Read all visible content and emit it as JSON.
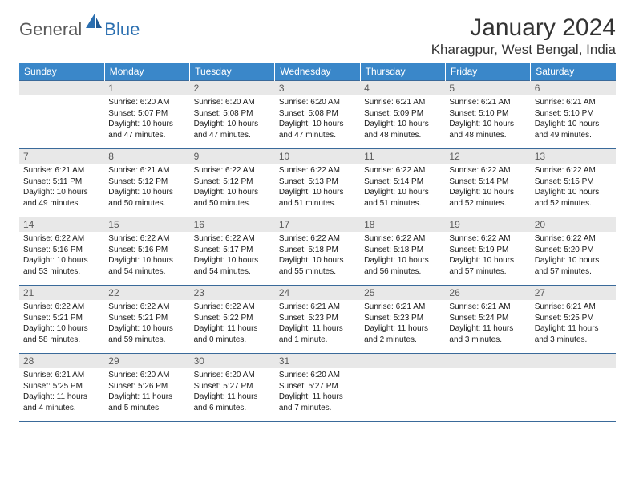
{
  "logo": {
    "text1": "General",
    "text2": "Blue"
  },
  "title": "January 2024",
  "location": "Kharagpur, West Bengal, India",
  "colors": {
    "header_bg": "#3a87c9",
    "header_text": "#ffffff",
    "daynum_bg": "#e8e8e8",
    "daynum_text": "#5a5a5a",
    "border": "#3a6a9a",
    "body_text": "#1a1a1a",
    "logo_gray": "#5a5a5a",
    "logo_blue": "#2b6fb0"
  },
  "dayHeaders": [
    "Sunday",
    "Monday",
    "Tuesday",
    "Wednesday",
    "Thursday",
    "Friday",
    "Saturday"
  ],
  "weeks": [
    [
      {
        "n": "",
        "sr": "",
        "ss": "",
        "dl": ""
      },
      {
        "n": "1",
        "sr": "Sunrise: 6:20 AM",
        "ss": "Sunset: 5:07 PM",
        "dl": "Daylight: 10 hours and 47 minutes."
      },
      {
        "n": "2",
        "sr": "Sunrise: 6:20 AM",
        "ss": "Sunset: 5:08 PM",
        "dl": "Daylight: 10 hours and 47 minutes."
      },
      {
        "n": "3",
        "sr": "Sunrise: 6:20 AM",
        "ss": "Sunset: 5:08 PM",
        "dl": "Daylight: 10 hours and 47 minutes."
      },
      {
        "n": "4",
        "sr": "Sunrise: 6:21 AM",
        "ss": "Sunset: 5:09 PM",
        "dl": "Daylight: 10 hours and 48 minutes."
      },
      {
        "n": "5",
        "sr": "Sunrise: 6:21 AM",
        "ss": "Sunset: 5:10 PM",
        "dl": "Daylight: 10 hours and 48 minutes."
      },
      {
        "n": "6",
        "sr": "Sunrise: 6:21 AM",
        "ss": "Sunset: 5:10 PM",
        "dl": "Daylight: 10 hours and 49 minutes."
      }
    ],
    [
      {
        "n": "7",
        "sr": "Sunrise: 6:21 AM",
        "ss": "Sunset: 5:11 PM",
        "dl": "Daylight: 10 hours and 49 minutes."
      },
      {
        "n": "8",
        "sr": "Sunrise: 6:21 AM",
        "ss": "Sunset: 5:12 PM",
        "dl": "Daylight: 10 hours and 50 minutes."
      },
      {
        "n": "9",
        "sr": "Sunrise: 6:22 AM",
        "ss": "Sunset: 5:12 PM",
        "dl": "Daylight: 10 hours and 50 minutes."
      },
      {
        "n": "10",
        "sr": "Sunrise: 6:22 AM",
        "ss": "Sunset: 5:13 PM",
        "dl": "Daylight: 10 hours and 51 minutes."
      },
      {
        "n": "11",
        "sr": "Sunrise: 6:22 AM",
        "ss": "Sunset: 5:14 PM",
        "dl": "Daylight: 10 hours and 51 minutes."
      },
      {
        "n": "12",
        "sr": "Sunrise: 6:22 AM",
        "ss": "Sunset: 5:14 PM",
        "dl": "Daylight: 10 hours and 52 minutes."
      },
      {
        "n": "13",
        "sr": "Sunrise: 6:22 AM",
        "ss": "Sunset: 5:15 PM",
        "dl": "Daylight: 10 hours and 52 minutes."
      }
    ],
    [
      {
        "n": "14",
        "sr": "Sunrise: 6:22 AM",
        "ss": "Sunset: 5:16 PM",
        "dl": "Daylight: 10 hours and 53 minutes."
      },
      {
        "n": "15",
        "sr": "Sunrise: 6:22 AM",
        "ss": "Sunset: 5:16 PM",
        "dl": "Daylight: 10 hours and 54 minutes."
      },
      {
        "n": "16",
        "sr": "Sunrise: 6:22 AM",
        "ss": "Sunset: 5:17 PM",
        "dl": "Daylight: 10 hours and 54 minutes."
      },
      {
        "n": "17",
        "sr": "Sunrise: 6:22 AM",
        "ss": "Sunset: 5:18 PM",
        "dl": "Daylight: 10 hours and 55 minutes."
      },
      {
        "n": "18",
        "sr": "Sunrise: 6:22 AM",
        "ss": "Sunset: 5:18 PM",
        "dl": "Daylight: 10 hours and 56 minutes."
      },
      {
        "n": "19",
        "sr": "Sunrise: 6:22 AM",
        "ss": "Sunset: 5:19 PM",
        "dl": "Daylight: 10 hours and 57 minutes."
      },
      {
        "n": "20",
        "sr": "Sunrise: 6:22 AM",
        "ss": "Sunset: 5:20 PM",
        "dl": "Daylight: 10 hours and 57 minutes."
      }
    ],
    [
      {
        "n": "21",
        "sr": "Sunrise: 6:22 AM",
        "ss": "Sunset: 5:21 PM",
        "dl": "Daylight: 10 hours and 58 minutes."
      },
      {
        "n": "22",
        "sr": "Sunrise: 6:22 AM",
        "ss": "Sunset: 5:21 PM",
        "dl": "Daylight: 10 hours and 59 minutes."
      },
      {
        "n": "23",
        "sr": "Sunrise: 6:22 AM",
        "ss": "Sunset: 5:22 PM",
        "dl": "Daylight: 11 hours and 0 minutes."
      },
      {
        "n": "24",
        "sr": "Sunrise: 6:21 AM",
        "ss": "Sunset: 5:23 PM",
        "dl": "Daylight: 11 hours and 1 minute."
      },
      {
        "n": "25",
        "sr": "Sunrise: 6:21 AM",
        "ss": "Sunset: 5:23 PM",
        "dl": "Daylight: 11 hours and 2 minutes."
      },
      {
        "n": "26",
        "sr": "Sunrise: 6:21 AM",
        "ss": "Sunset: 5:24 PM",
        "dl": "Daylight: 11 hours and 3 minutes."
      },
      {
        "n": "27",
        "sr": "Sunrise: 6:21 AM",
        "ss": "Sunset: 5:25 PM",
        "dl": "Daylight: 11 hours and 3 minutes."
      }
    ],
    [
      {
        "n": "28",
        "sr": "Sunrise: 6:21 AM",
        "ss": "Sunset: 5:25 PM",
        "dl": "Daylight: 11 hours and 4 minutes."
      },
      {
        "n": "29",
        "sr": "Sunrise: 6:20 AM",
        "ss": "Sunset: 5:26 PM",
        "dl": "Daylight: 11 hours and 5 minutes."
      },
      {
        "n": "30",
        "sr": "Sunrise: 6:20 AM",
        "ss": "Sunset: 5:27 PM",
        "dl": "Daylight: 11 hours and 6 minutes."
      },
      {
        "n": "31",
        "sr": "Sunrise: 6:20 AM",
        "ss": "Sunset: 5:27 PM",
        "dl": "Daylight: 11 hours and 7 minutes."
      },
      {
        "n": "",
        "sr": "",
        "ss": "",
        "dl": ""
      },
      {
        "n": "",
        "sr": "",
        "ss": "",
        "dl": ""
      },
      {
        "n": "",
        "sr": "",
        "ss": "",
        "dl": ""
      }
    ]
  ]
}
